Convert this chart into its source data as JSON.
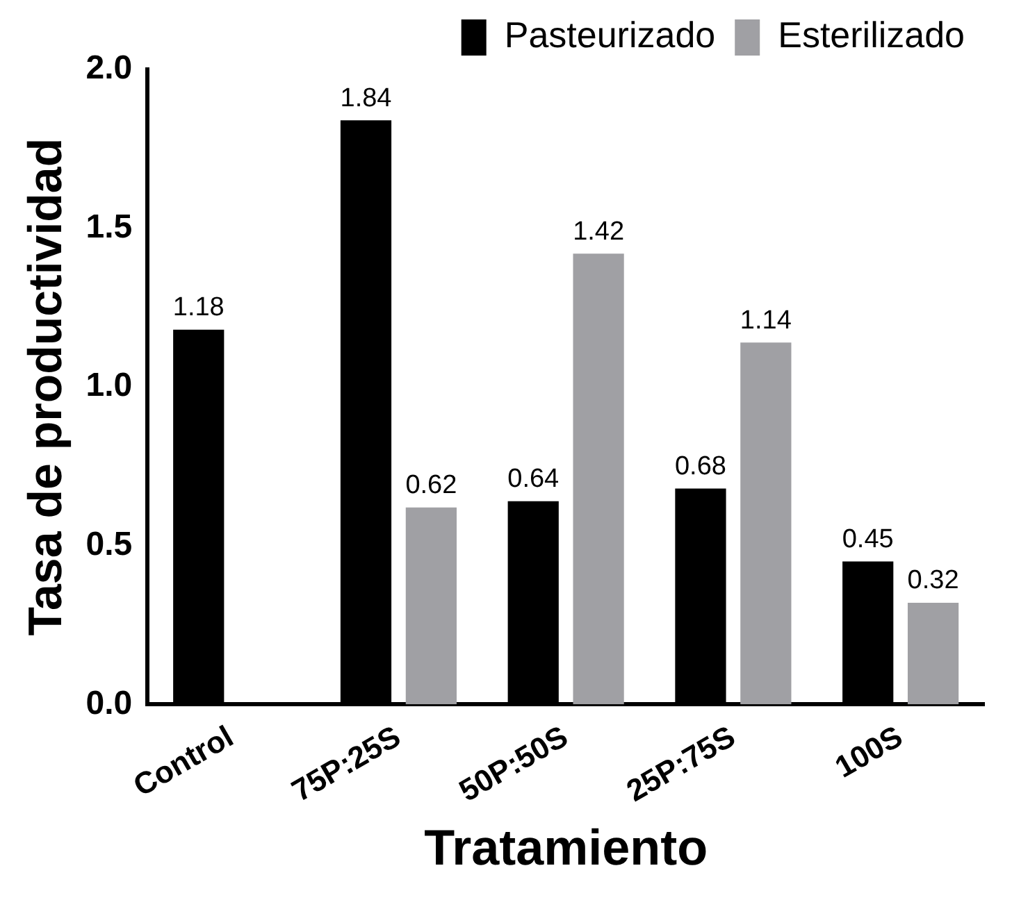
{
  "chart_data": {
    "type": "bar",
    "xlabel": "Tratamiento",
    "ylabel": "Tasa de productividad",
    "categories": [
      "Control",
      "75P:25S",
      "50P:50S",
      "25P:75S",
      "100S"
    ],
    "series": [
      {
        "name": "Pasteurizado",
        "color": "#000000",
        "values": [
          1.18,
          1.84,
          0.64,
          0.68,
          0.45
        ]
      },
      {
        "name": "Esterilizado",
        "color": "#a0a0a4",
        "values": [
          null,
          0.62,
          1.42,
          1.14,
          0.32
        ]
      }
    ],
    "ylim": [
      0,
      2
    ],
    "yticks": [
      {
        "value": 0,
        "label": "0.0"
      },
      {
        "value": 0.5,
        "label": "0.5"
      },
      {
        "value": 1,
        "label": "1.0"
      },
      {
        "value": 1.5,
        "label": "1.5"
      },
      {
        "value": 2,
        "label": "2.0"
      }
    ],
    "grid": false,
    "legend": "top right",
    "data_labels": true
  }
}
